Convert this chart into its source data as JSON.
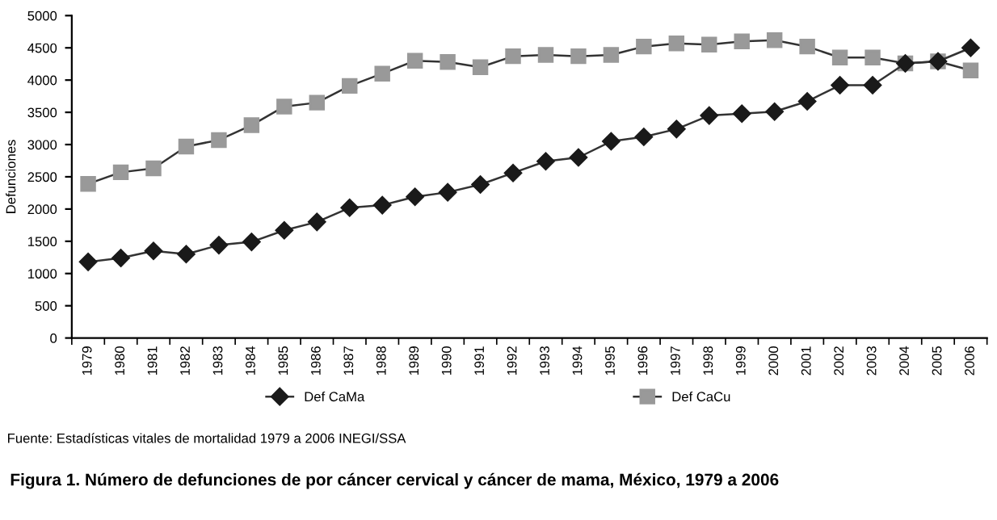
{
  "chart_data": {
    "type": "line",
    "title": "Figura 1. Número de defunciones de por cáncer cervical y cáncer de mama, México, 1979 a 2006",
    "ylabel": "Defunciones",
    "annotations": [
      "Fuente: Estadísticas vitales de mortalidad 1979 a 2006 INEGI/SSA"
    ],
    "categories": [
      "1979",
      "1980",
      "1981",
      "1982",
      "1983",
      "1984",
      "1985",
      "1986",
      "1987",
      "1988",
      "1989",
      "1990",
      "1991",
      "1992",
      "1993",
      "1994",
      "1995",
      "1996",
      "1997",
      "1998",
      "1999",
      "2000",
      "2001",
      "2002",
      "2003",
      "2004",
      "2005",
      "2006"
    ],
    "series": [
      {
        "name": "Def CaMa",
        "color": "#1a1a1a",
        "marker": "diamond",
        "values": [
          1180,
          1240,
          1350,
          1300,
          1440,
          1490,
          1670,
          1800,
          2020,
          2060,
          2190,
          2260,
          2380,
          2560,
          2740,
          2800,
          3050,
          3120,
          3240,
          3450,
          3480,
          3510,
          3670,
          3920,
          3920,
          4260,
          4290,
          4500
        ]
      },
      {
        "name": "Def CaCu",
        "color": "#999999",
        "marker": "square",
        "values": [
          2390,
          2570,
          2630,
          2970,
          3070,
          3300,
          3590,
          3650,
          3910,
          4100,
          4300,
          4280,
          4200,
          4370,
          4390,
          4370,
          4390,
          4520,
          4570,
          4550,
          4600,
          4620,
          4520,
          4350,
          4350,
          4260,
          4290,
          4150
        ]
      }
    ],
    "ylim": [
      0,
      5000
    ],
    "yticks": [
      0,
      500,
      1000,
      1500,
      2000,
      2500,
      3000,
      3500,
      4000,
      4500,
      5000
    ],
    "grid": false,
    "legend": "bottom",
    "line_style": "solid"
  }
}
